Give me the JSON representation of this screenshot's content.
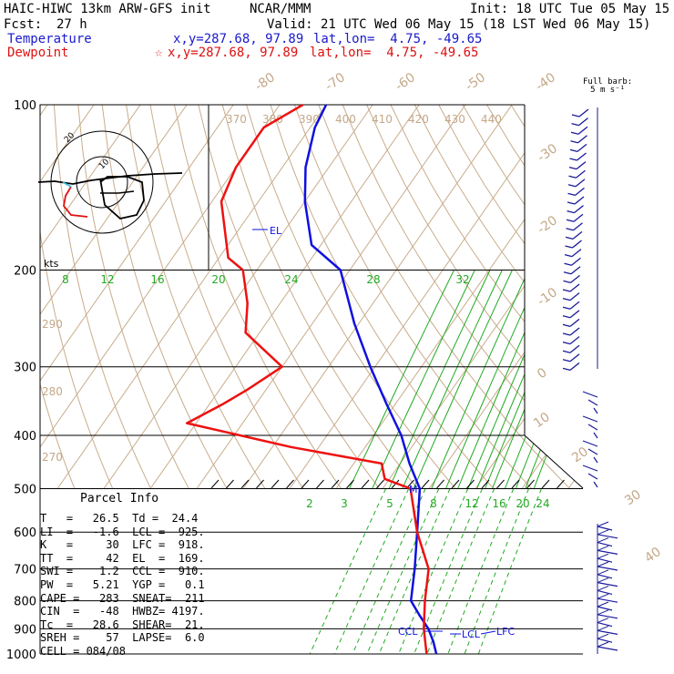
{
  "header": {
    "model": "HAIC-HIWC 13km ARW-GFS init",
    "org": "NCAR/MMM",
    "init": "Init: 18 UTC Tue 05 May 15",
    "fcst_label": "Fcst:",
    "fcst_value": "27 h",
    "valid": "Valid: 21 UTC Wed 06 May 15 (18 LST Wed 06 May 15)",
    "temp_label": "Temperature",
    "temp_xy": "x,y=287.68, 97.89",
    "temp_latlon": "lat,lon=  4.75, -49.65",
    "dew_label": "Dewpoint",
    "dew_xy": "x,y=287.68, 97.89",
    "dew_latlon": "lat,lon=  4.75, -49.65",
    "barb_title": "Full barb:",
    "barb_unit": "5 m s⁻¹"
  },
  "colors": {
    "temperature": "#1010e0",
    "dewpoint": "#ee1111",
    "isotherm": "#c8ac8c",
    "mixing_ratio": "#22aa22",
    "isobar": "#000000"
  },
  "parcel_info": {
    "title": "Parcel Info",
    "lines": [
      "T   =   26.5  Td =  24.4",
      "LI  =   -1.6  LCL =  925.",
      "K   =     30  LFC =  918.",
      "TT  =     42  EL  =  169.",
      "SWI =    1.2  CCL =  910.",
      "PW  =   5.21  YGP =   0.1",
      "CAPE =   283  SNEAT=  211",
      "CIN  =   -48  HWBZ= 4197.",
      "Tc  =   28.6  SHEAR=  21.",
      "SREH =    57  LAPSE=  6.0",
      "CELL = 084/08"
    ]
  },
  "chart_data": {
    "type": "line",
    "title": "",
    "y_axis": "Pressure (hPa), log scale",
    "y_ticks": [
      100,
      200,
      300,
      400,
      500,
      600,
      700,
      800,
      900,
      1000
    ],
    "isotherm_labels": [
      "-80",
      "-70",
      "-60",
      "-50",
      "-40",
      "-30",
      "-20",
      "-10",
      "0",
      "10",
      "20",
      "30",
      "40"
    ],
    "theta_labels_top": [
      "370",
      "380",
      "390",
      "400",
      "410",
      "420",
      "430",
      "440"
    ],
    "theta_labels_left": [
      "290",
      "280",
      "270"
    ],
    "mixing_ratio_labels_upper": [
      "8",
      "12",
      "16",
      "20",
      "24",
      "28",
      "32"
    ],
    "mixing_ratio_labels_lower": [
      "2",
      "3",
      "5",
      "8",
      "12",
      "16",
      "20",
      "24"
    ],
    "series": [
      {
        "name": "Temperature",
        "x_temp_c": [
          -80,
          -79,
          -75,
          -70,
          -62,
          -52,
          -41,
          -31,
          -22,
          -14,
          -8,
          -2,
          4,
          9,
          13,
          17,
          21,
          24,
          26.5
        ],
        "y_pressure": [
          100,
          110,
          130,
          150,
          180,
          200,
          250,
          300,
          350,
          400,
          450,
          500,
          600,
          700,
          800,
          850,
          900,
          950,
          1000
        ]
      },
      {
        "name": "Dewpoint",
        "x_temp_c": [
          -85,
          -90,
          -90,
          -88,
          -78,
          -73,
          -67,
          -63,
          -50,
          -54,
          -57,
          -62,
          -36,
          -14,
          -11,
          -4,
          4,
          12,
          16,
          20,
          24.4
        ],
        "y_pressure": [
          100,
          110,
          130,
          150,
          190,
          200,
          230,
          260,
          300,
          330,
          350,
          380,
          420,
          450,
          480,
          500,
          600,
          700,
          800,
          900,
          1000
        ]
      }
    ],
    "level_labels": [
      "EL",
      "M",
      "CCL",
      "LCL",
      "LFC"
    ],
    "hodograph": {
      "units": "kts",
      "ring_labels": [
        "10",
        "20"
      ]
    }
  }
}
